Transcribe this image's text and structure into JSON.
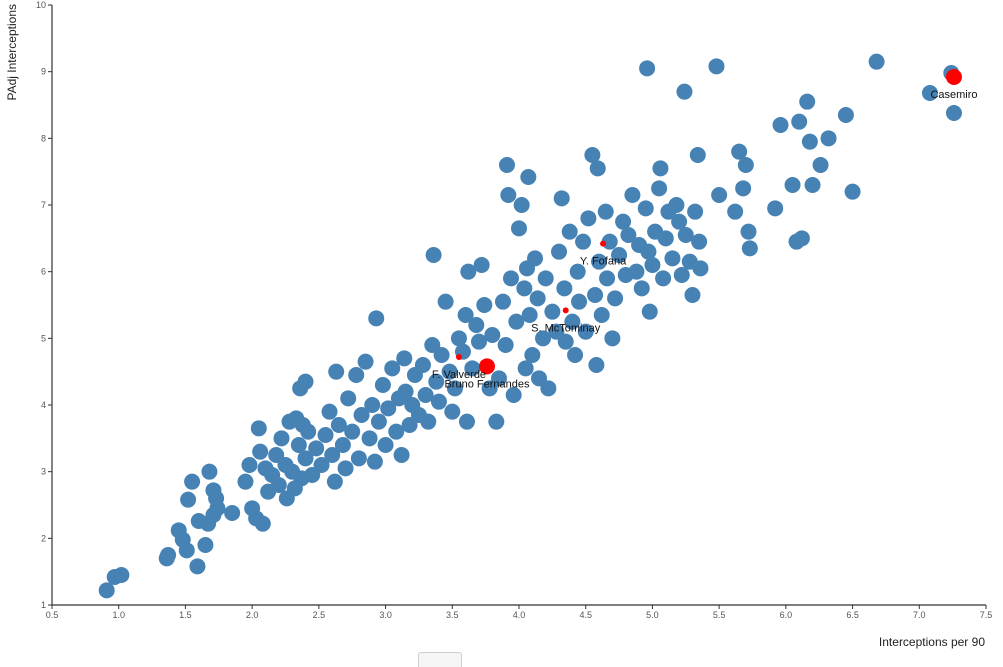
{
  "chart_data": {
    "type": "scatter",
    "title": "",
    "xlabel": "Interceptions per 90",
    "ylabel": "PAdj Interceptions",
    "xlim": [
      0.5,
      7.5
    ],
    "ylim": [
      1,
      10
    ],
    "xticks": [
      "0.5",
      "1.0",
      "1.5",
      "2.0",
      "2.5",
      "3.0",
      "3.5",
      "4.0",
      "4.5",
      "5.0",
      "5.5",
      "6.0",
      "6.5",
      "7.0",
      "7.5"
    ],
    "yticks": [
      "1",
      "2",
      "3",
      "4",
      "5",
      "6",
      "7",
      "8",
      "9",
      "10"
    ],
    "grid": false,
    "colors": {
      "points": "#4682b4",
      "highlight": "#ff0000"
    },
    "highlighted": [
      {
        "name": "Casemiro",
        "x": 7.26,
        "y": 8.92,
        "size": "large"
      },
      {
        "name": "Bruno Fernandes",
        "x": 3.76,
        "y": 4.58,
        "size": "large"
      },
      {
        "name": "Y. Fofana",
        "x": 4.63,
        "y": 6.42,
        "size": "small"
      },
      {
        "name": "S. McTominay",
        "x": 4.35,
        "y": 5.42,
        "size": "small"
      },
      {
        "name": "F. Valverde",
        "x": 3.55,
        "y": 4.72,
        "size": "small"
      }
    ],
    "points": [
      [
        0.91,
        1.22
      ],
      [
        0.97,
        1.42
      ],
      [
        1.02,
        1.45
      ],
      [
        1.36,
        1.7
      ],
      [
        1.37,
        1.75
      ],
      [
        1.45,
        2.12
      ],
      [
        1.48,
        1.98
      ],
      [
        1.51,
        1.82
      ],
      [
        1.59,
        1.58
      ],
      [
        1.6,
        2.26
      ],
      [
        1.65,
        1.9
      ],
      [
        1.67,
        2.22
      ],
      [
        1.71,
        2.35
      ],
      [
        1.73,
        2.6
      ],
      [
        1.71,
        2.72
      ],
      [
        1.74,
        2.45
      ],
      [
        1.68,
        3.0
      ],
      [
        1.52,
        2.58
      ],
      [
        1.55,
        2.85
      ],
      [
        1.85,
        2.38
      ],
      [
        1.95,
        2.85
      ],
      [
        1.98,
        3.1
      ],
      [
        2.0,
        2.45
      ],
      [
        2.03,
        2.3
      ],
      [
        2.06,
        3.3
      ],
      [
        2.08,
        2.22
      ],
      [
        2.1,
        3.05
      ],
      [
        2.05,
        3.65
      ],
      [
        2.12,
        2.7
      ],
      [
        2.15,
        2.95
      ],
      [
        2.18,
        3.25
      ],
      [
        2.2,
        2.8
      ],
      [
        2.22,
        3.5
      ],
      [
        2.25,
        3.1
      ],
      [
        2.26,
        2.6
      ],
      [
        2.28,
        3.75
      ],
      [
        2.3,
        3.0
      ],
      [
        2.32,
        2.75
      ],
      [
        2.35,
        3.4
      ],
      [
        2.33,
        3.8
      ],
      [
        2.37,
        2.9
      ],
      [
        2.36,
        4.25
      ],
      [
        2.4,
        3.2
      ],
      [
        2.42,
        3.6
      ],
      [
        2.45,
        2.95
      ],
      [
        2.48,
        3.35
      ],
      [
        2.38,
        3.7
      ],
      [
        2.4,
        4.35
      ],
      [
        2.52,
        3.1
      ],
      [
        2.55,
        3.55
      ],
      [
        2.58,
        3.9
      ],
      [
        2.6,
        3.25
      ],
      [
        2.62,
        2.85
      ],
      [
        2.65,
        3.7
      ],
      [
        2.63,
        4.5
      ],
      [
        2.68,
        3.4
      ],
      [
        2.7,
        3.05
      ],
      [
        2.72,
        4.1
      ],
      [
        2.75,
        3.6
      ],
      [
        2.78,
        4.45
      ],
      [
        2.8,
        3.2
      ],
      [
        2.82,
        3.85
      ],
      [
        2.85,
        4.65
      ],
      [
        2.88,
        3.5
      ],
      [
        2.9,
        4.0
      ],
      [
        2.92,
        3.15
      ],
      [
        2.95,
        3.75
      ],
      [
        2.98,
        4.3
      ],
      [
        3.0,
        3.4
      ],
      [
        3.02,
        3.95
      ],
      [
        3.05,
        4.55
      ],
      [
        3.08,
        3.6
      ],
      [
        3.1,
        4.1
      ],
      [
        3.12,
        3.25
      ],
      [
        2.93,
        5.3
      ],
      [
        3.14,
        4.7
      ],
      [
        3.15,
        4.2
      ],
      [
        3.18,
        3.7
      ],
      [
        3.2,
        4.0
      ],
      [
        3.22,
        4.45
      ],
      [
        3.25,
        3.85
      ],
      [
        3.28,
        4.6
      ],
      [
        3.3,
        4.15
      ],
      [
        3.32,
        3.75
      ],
      [
        3.35,
        4.9
      ],
      [
        3.36,
        6.25
      ],
      [
        3.38,
        4.35
      ],
      [
        3.4,
        4.05
      ],
      [
        3.42,
        4.75
      ],
      [
        3.45,
        5.55
      ],
      [
        3.48,
        4.5
      ],
      [
        3.5,
        3.9
      ],
      [
        3.52,
        4.25
      ],
      [
        3.55,
        5.0
      ],
      [
        3.58,
        4.8
      ],
      [
        3.6,
        5.35
      ],
      [
        3.61,
        3.75
      ],
      [
        3.62,
        6.0
      ],
      [
        3.65,
        4.55
      ],
      [
        3.68,
        5.2
      ],
      [
        3.7,
        4.95
      ],
      [
        3.72,
        6.1
      ],
      [
        3.74,
        5.5
      ],
      [
        3.78,
        4.25
      ],
      [
        3.8,
        5.05
      ],
      [
        3.83,
        3.75
      ],
      [
        3.85,
        4.4
      ],
      [
        3.88,
        5.55
      ],
      [
        3.9,
        4.9
      ],
      [
        3.91,
        7.6
      ],
      [
        3.92,
        7.15
      ],
      [
        3.94,
        5.9
      ],
      [
        3.96,
        4.15
      ],
      [
        3.98,
        5.25
      ],
      [
        4.0,
        6.65
      ],
      [
        4.02,
        7.0
      ],
      [
        4.04,
        5.75
      ],
      [
        4.05,
        4.55
      ],
      [
        4.06,
        6.05
      ],
      [
        4.07,
        7.42
      ],
      [
        4.08,
        5.35
      ],
      [
        4.1,
        4.75
      ],
      [
        4.12,
        6.2
      ],
      [
        4.14,
        5.6
      ],
      [
        4.15,
        4.4
      ],
      [
        4.18,
        5.0
      ],
      [
        4.2,
        5.9
      ],
      [
        4.22,
        4.25
      ],
      [
        4.25,
        5.4
      ],
      [
        4.28,
        5.1
      ],
      [
        4.3,
        6.3
      ],
      [
        4.32,
        7.1
      ],
      [
        4.34,
        5.75
      ],
      [
        4.35,
        4.95
      ],
      [
        4.38,
        6.6
      ],
      [
        4.4,
        5.25
      ],
      [
        4.42,
        4.75
      ],
      [
        4.44,
        6.0
      ],
      [
        4.45,
        5.55
      ],
      [
        4.48,
        6.45
      ],
      [
        4.5,
        5.1
      ],
      [
        4.52,
        6.8
      ],
      [
        4.55,
        7.75
      ],
      [
        4.57,
        5.65
      ],
      [
        4.58,
        4.6
      ],
      [
        4.59,
        7.55
      ],
      [
        4.6,
        6.15
      ],
      [
        4.62,
        5.35
      ],
      [
        4.65,
        6.9
      ],
      [
        4.66,
        5.9
      ],
      [
        4.68,
        6.45
      ],
      [
        4.7,
        5.0
      ],
      [
        4.72,
        5.6
      ],
      [
        4.75,
        6.25
      ],
      [
        4.78,
        6.75
      ],
      [
        4.8,
        5.95
      ],
      [
        4.82,
        6.55
      ],
      [
        4.85,
        7.15
      ],
      [
        4.88,
        6.0
      ],
      [
        4.9,
        6.4
      ],
      [
        4.92,
        5.75
      ],
      [
        4.95,
        6.95
      ],
      [
        4.97,
        6.3
      ],
      [
        4.96,
        9.05
      ],
      [
        4.98,
        5.4
      ],
      [
        5.0,
        6.1
      ],
      [
        5.02,
        6.6
      ],
      [
        5.05,
        7.25
      ],
      [
        5.06,
        7.55
      ],
      [
        5.08,
        5.9
      ],
      [
        5.1,
        6.5
      ],
      [
        5.12,
        6.9
      ],
      [
        5.15,
        6.2
      ],
      [
        5.18,
        7.0
      ],
      [
        5.2,
        6.75
      ],
      [
        5.22,
        5.95
      ],
      [
        5.24,
        8.7
      ],
      [
        5.25,
        6.55
      ],
      [
        5.28,
        6.15
      ],
      [
        5.3,
        5.65
      ],
      [
        5.32,
        6.9
      ],
      [
        5.34,
        7.75
      ],
      [
        5.35,
        6.45
      ],
      [
        5.36,
        6.05
      ],
      [
        5.48,
        9.08
      ],
      [
        5.5,
        7.15
      ],
      [
        5.62,
        6.9
      ],
      [
        5.65,
        7.8
      ],
      [
        5.68,
        7.25
      ],
      [
        5.7,
        7.6
      ],
      [
        5.72,
        6.6
      ],
      [
        5.73,
        6.35
      ],
      [
        5.92,
        6.95
      ],
      [
        5.96,
        8.2
      ],
      [
        6.05,
        7.3
      ],
      [
        6.08,
        6.45
      ],
      [
        6.1,
        8.25
      ],
      [
        6.12,
        6.5
      ],
      [
        6.16,
        8.55
      ],
      [
        6.18,
        7.95
      ],
      [
        6.2,
        7.3
      ],
      [
        6.26,
        7.6
      ],
      [
        6.32,
        8.0
      ],
      [
        6.45,
        8.35
      ],
      [
        6.5,
        7.2
      ],
      [
        6.68,
        9.15
      ],
      [
        7.08,
        8.68
      ],
      [
        7.24,
        8.98
      ],
      [
        7.26,
        8.38
      ]
    ]
  }
}
